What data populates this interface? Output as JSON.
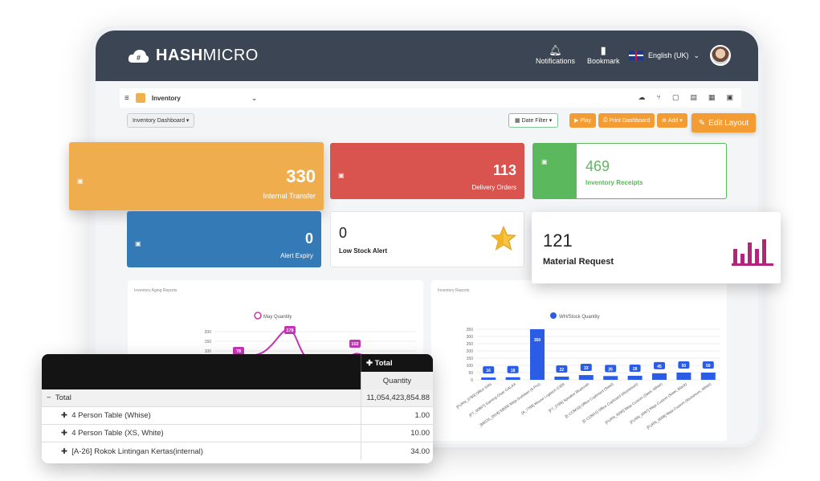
{
  "brand": {
    "name_bold": "HASH",
    "name_thin": "MICRO"
  },
  "topbar": {
    "notifications_label": "Notifications",
    "bookmark_label": "Bookmark",
    "language_label": "English (UK)"
  },
  "subbar": {
    "module": "Inventory"
  },
  "filters": {
    "dashboard_select": "Inventory Dashboard",
    "date_filter": "Date Filter",
    "play_label": "Play",
    "print_label": "Print Dashboard",
    "add_label": "Add"
  },
  "edit_layout_label": "Edit Layout",
  "cards": {
    "internal_transfer": {
      "value": "330",
      "label": "Internal Transfer",
      "color": "#f0ad4e"
    },
    "delivery_orders": {
      "value": "113",
      "label": "Delivery Orders",
      "color": "#d9534f"
    },
    "inventory_receipts": {
      "value": "469",
      "label": "Inventory Receipts",
      "color": "#5cb85c"
    },
    "alert_expiry": {
      "value": "0",
      "label": "Alert Expiry",
      "color": "#337ab7"
    },
    "low_stock_alert": {
      "value": "0",
      "label": "Low Stock Alert"
    },
    "material_request": {
      "value": "121",
      "label": "Material Request",
      "icon_color": "#b0267a"
    }
  },
  "charts": {
    "aging": {
      "title": "Inventory Aging Reports"
    },
    "stock": {
      "title": "Inventory Reports"
    }
  },
  "chart_data": [
    {
      "type": "line",
      "title": "Inventory Aging Reports",
      "legend": "top",
      "series": [
        {
          "name": "May Quantity",
          "labels": [
            "78",
            "178",
            "102"
          ]
        }
      ],
      "y_ticks": [
        "200",
        "150",
        "100"
      ],
      "color": "#c236b6"
    },
    {
      "type": "bar",
      "title": "Inventory Reports",
      "legend": "top",
      "series": [
        {
          "name": "WH/Stock Quantity",
          "values": [
            16,
            18,
            350,
            22,
            33,
            26,
            28,
            45,
            50,
            50
          ]
        }
      ],
      "categories": [
        "[FURN_0789] Office Sofa",
        "[FT_00897] Gaming Chair GALAX",
        "[MEDS_0918] SB095 Meja Dudukan (6 Pcs)",
        "[A_7788] Mouse Logitech G304",
        "[FT_0786] Speaker Bluetooth",
        "[E-COM10] Office Cupboard (Steel)",
        "[E-COM11] Office Cupboard (Aluminium)",
        "[FURN_0096] Meja Custom (Steel, White)",
        "[FURN_0097] Meja Custom (Steel, Black)",
        "[FURN_0098] Meja Custom (Aluminium, White)"
      ],
      "y_ticks": [
        "350",
        "300",
        "250",
        "200",
        "150",
        "100",
        "50",
        "0"
      ],
      "ylim": [
        0,
        350
      ],
      "color": "#2b5ce6"
    }
  ],
  "pivot": {
    "total_header": "Total",
    "quantity_header": "Quantity",
    "rows": [
      {
        "label": "Total",
        "value": "11,054,423,854.88"
      },
      {
        "label": "4 Person Table (Whise)",
        "value": "1.00"
      },
      {
        "label": "4 Person Table (XS, White)",
        "value": "10.00"
      },
      {
        "label": "[A-26] Rokok Lintingan Kertas(internal)",
        "value": "34.00"
      }
    ]
  }
}
